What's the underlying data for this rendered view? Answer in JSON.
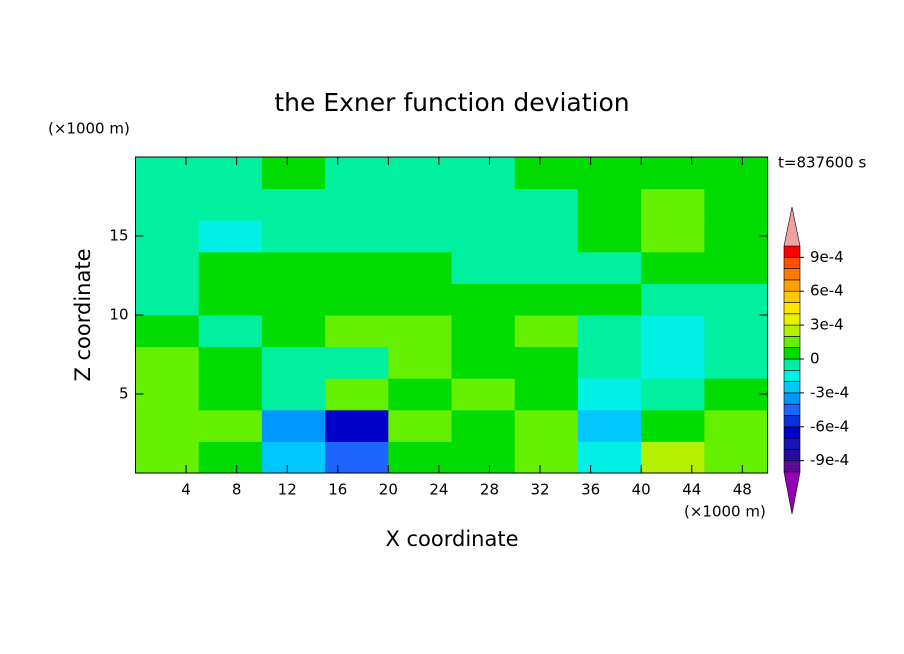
{
  "chart_data": {
    "type": "contourf",
    "title": "the Exner function deviation",
    "x_label": "X coordinate",
    "y_label": "Z coordinate",
    "x_unit": "(×1000 m)",
    "y_unit": "(×1000 m)",
    "time_label": "t=837600 s",
    "x": [
      2.5,
      7.5,
      12.5,
      17.5,
      22.5,
      27.5,
      32.5,
      37.5,
      42.5,
      47.5
    ],
    "y": [
      1,
      3,
      5,
      7,
      9,
      11,
      13,
      15,
      17,
      19
    ],
    "values": [
      [
        0.00015,
        5e-05,
        -0.00025,
        -0.00045,
        5e-05,
        5e-05,
        0.00015,
        -0.00015,
        0.00025,
        0.00015
      ],
      [
        0.00015,
        0.00015,
        -0.00035,
        -0.00065,
        0.00015,
        5e-05,
        0.00015,
        -0.00025,
        5e-05,
        0.00015
      ],
      [
        0.00015,
        5e-05,
        -5e-05,
        0.00015,
        5e-05,
        0.00015,
        5e-05,
        -0.00015,
        -5e-05,
        5e-05
      ],
      [
        0.00015,
        5e-05,
        -5e-05,
        -5e-05,
        0.00015,
        5e-05,
        5e-05,
        -5e-05,
        -0.00015,
        -5e-05
      ],
      [
        5e-05,
        -5e-05,
        5e-05,
        0.00015,
        0.00015,
        5e-05,
        0.00015,
        -5e-05,
        -0.00015,
        -5e-05
      ],
      [
        -5e-05,
        5e-05,
        5e-05,
        5e-05,
        5e-05,
        5e-05,
        5e-05,
        5e-05,
        -5e-05,
        -5e-05
      ],
      [
        -5e-05,
        5e-05,
        5e-05,
        5e-05,
        5e-05,
        -5e-05,
        -5e-05,
        -5e-05,
        5e-05,
        5e-05
      ],
      [
        -5e-05,
        -0.00015,
        -5e-05,
        -5e-05,
        -5e-05,
        -5e-05,
        -5e-05,
        5e-05,
        0.00015,
        5e-05
      ],
      [
        -5e-05,
        -5e-05,
        -5e-05,
        -5e-05,
        -5e-05,
        -5e-05,
        -5e-05,
        5e-05,
        0.00015,
        5e-05
      ],
      [
        -5e-05,
        -5e-05,
        5e-05,
        -5e-05,
        -5e-05,
        -5e-05,
        5e-05,
        5e-05,
        5e-05,
        5e-05
      ]
    ],
    "xlim": [
      0,
      50
    ],
    "ylim": [
      0,
      20
    ],
    "xticks": [
      4,
      8,
      12,
      16,
      20,
      24,
      28,
      32,
      36,
      40,
      44,
      48
    ],
    "yticks": [
      5,
      10,
      15
    ],
    "clim": [
      -0.001,
      0.001
    ],
    "cticks": [
      {
        "value": -0.0009,
        "label": "-9e-4"
      },
      {
        "value": -0.0006,
        "label": "-6e-4"
      },
      {
        "value": -0.0003,
        "label": "-3e-4"
      },
      0,
      {
        "value": 0.0003,
        "label": "3e-4"
      },
      {
        "value": 0.0006,
        "label": "6e-4"
      },
      {
        "value": 0.0009,
        "label": "9e-4"
      }
    ],
    "colors": [
      "#5a0a96",
      "#2a0aa0",
      "#1414b4",
      "#0000c8",
      "#0a32dc",
      "#1e64ff",
      "#0096ff",
      "#00c8ff",
      "#00f0e6",
      "#00f0a0",
      "#00dc00",
      "#64f000",
      "#b4f000",
      "#e6f000",
      "#ffe600",
      "#ffc800",
      "#ffa000",
      "#ff7800",
      "#ff5000",
      "#ff0000"
    ],
    "extend_colors": [
      "#9600b4",
      "#f0a0a0"
    ]
  }
}
